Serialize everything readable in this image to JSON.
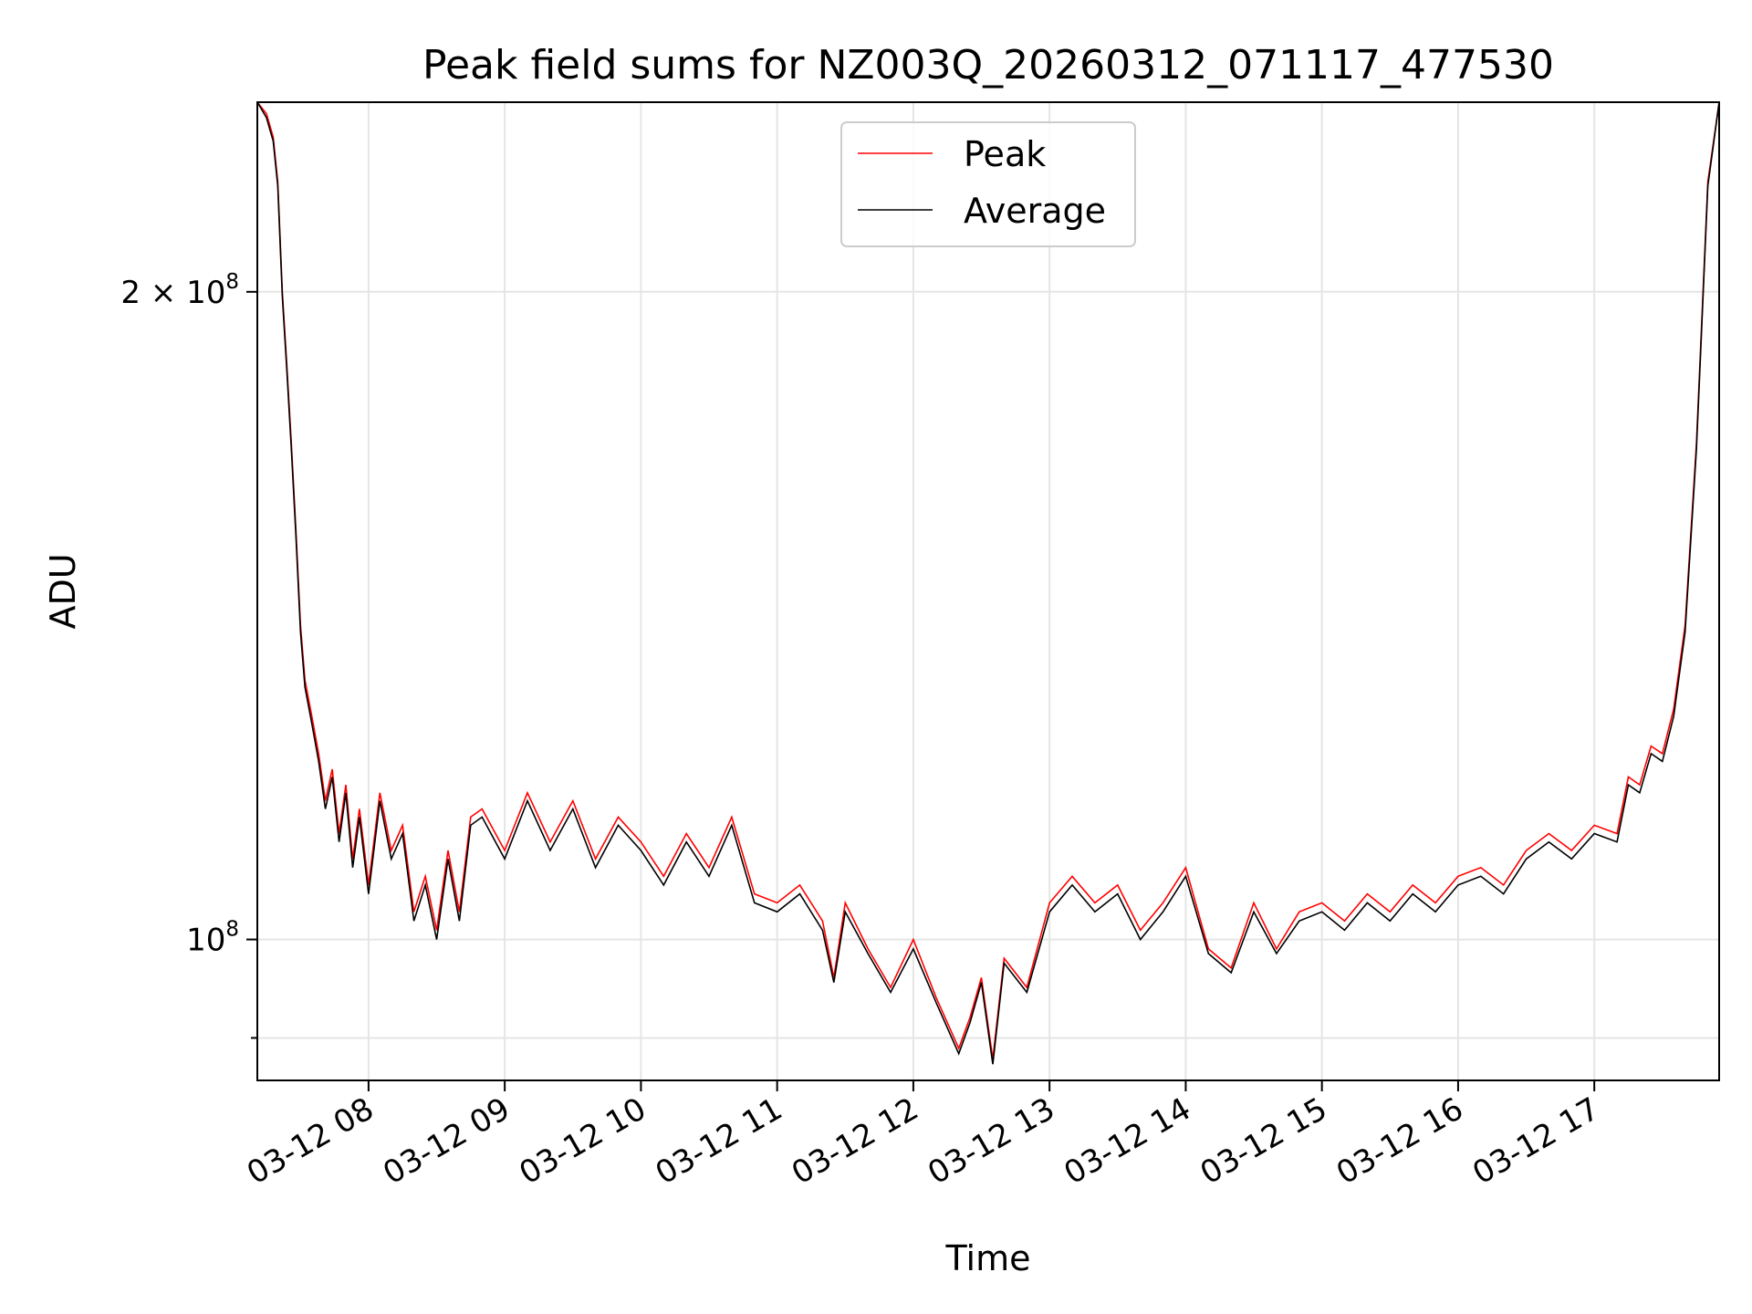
{
  "chart_data": {
    "type": "line",
    "title": "Peak field sums for NZ003Q_20260312_071117_477530",
    "xlabel": "Time",
    "ylabel": "ADU",
    "yscale": "log",
    "ylim": [
      86000000,
      245000000
    ],
    "xlim": [
      "03-12 07:11",
      "03-12 17:55"
    ],
    "grid": true,
    "legend_position": "top-center",
    "x_ticks": [
      "03-12 08",
      "03-12 09",
      "03-12 10",
      "03-12 11",
      "03-12 12",
      "03-12 13",
      "03-12 14",
      "03-12 15",
      "03-12 16",
      "03-12 17"
    ],
    "y_ticks": [
      {
        "value": 100000000,
        "base": "10",
        "exp": "8",
        "mult": ""
      },
      {
        "value": 200000000,
        "base": "10",
        "exp": "8",
        "mult": "2 × "
      }
    ],
    "y_minor_ticks": [
      90000000
    ],
    "series": [
      {
        "name": "Peak",
        "color": "#ff0000",
        "x": [
          "03-12 07:11",
          "03-12 07:15",
          "03-12 07:18",
          "03-12 07:20",
          "03-12 07:22",
          "03-12 07:24",
          "03-12 07:26",
          "03-12 07:28",
          "03-12 07:30",
          "03-12 07:32",
          "03-12 07:35",
          "03-12 07:38",
          "03-12 07:41",
          "03-12 07:44",
          "03-12 07:47",
          "03-12 07:50",
          "03-12 07:53",
          "03-12 07:56",
          "03-12 08:00",
          "03-12 08:05",
          "03-12 08:10",
          "03-12 08:15",
          "03-12 08:20",
          "03-12 08:25",
          "03-12 08:30",
          "03-12 08:35",
          "03-12 08:40",
          "03-12 08:45",
          "03-12 08:50",
          "03-12 09:00",
          "03-12 09:10",
          "03-12 09:20",
          "03-12 09:30",
          "03-12 09:40",
          "03-12 09:50",
          "03-12 10:00",
          "03-12 10:10",
          "03-12 10:20",
          "03-12 10:30",
          "03-12 10:40",
          "03-12 10:50",
          "03-12 11:00",
          "03-12 11:10",
          "03-12 11:20",
          "03-12 11:25",
          "03-12 11:30",
          "03-12 11:40",
          "03-12 11:50",
          "03-12 12:00",
          "03-12 12:10",
          "03-12 12:20",
          "03-12 12:25",
          "03-12 12:30",
          "03-12 12:35",
          "03-12 12:40",
          "03-12 12:50",
          "03-12 13:00",
          "03-12 13:10",
          "03-12 13:20",
          "03-12 13:30",
          "03-12 13:40",
          "03-12 13:50",
          "03-12 14:00",
          "03-12 14:10",
          "03-12 14:20",
          "03-12 14:30",
          "03-12 14:40",
          "03-12 14:50",
          "03-12 15:00",
          "03-12 15:10",
          "03-12 15:20",
          "03-12 15:30",
          "03-12 15:40",
          "03-12 15:50",
          "03-12 16:00",
          "03-12 16:10",
          "03-12 16:20",
          "03-12 16:30",
          "03-12 16:40",
          "03-12 16:50",
          "03-12 17:00",
          "03-12 17:10",
          "03-12 17:15",
          "03-12 17:20",
          "03-12 17:25",
          "03-12 17:30",
          "03-12 17:35",
          "03-12 17:40",
          "03-12 17:45",
          "03-12 17:50",
          "03-12 17:55"
        ],
        "y": [
          245000000,
          242000000,
          236000000,
          225000000,
          200000000,
          185000000,
          170000000,
          155000000,
          140000000,
          132000000,
          127000000,
          122000000,
          116000000,
          120000000,
          112000000,
          118000000,
          109000000,
          115000000,
          106000000,
          117000000,
          110000000,
          113000000,
          103000000,
          107000000,
          101000000,
          110000000,
          103000000,
          114000000,
          115000000,
          110000000,
          117000000,
          111000000,
          116000000,
          109000000,
          114000000,
          111000000,
          107000000,
          112000000,
          108000000,
          114000000,
          105000000,
          104000000,
          106000000,
          102000000,
          96000000,
          104000000,
          99000000,
          95000000,
          100000000,
          94000000,
          89000000,
          92000000,
          96000000,
          88000000,
          98000000,
          95000000,
          104000000,
          107000000,
          104000000,
          106000000,
          101000000,
          104000000,
          108000000,
          99000000,
          97000000,
          104000000,
          99000000,
          103000000,
          104000000,
          102000000,
          105000000,
          103000000,
          106000000,
          104000000,
          107000000,
          108000000,
          106000000,
          110000000,
          112000000,
          110000000,
          113000000,
          112000000,
          119000000,
          118000000,
          123000000,
          122000000,
          128000000,
          140000000,
          170000000,
          225000000,
          245000000
        ]
      },
      {
        "name": "Average",
        "color": "#000000",
        "x": [
          "03-12 07:11",
          "03-12 07:15",
          "03-12 07:18",
          "03-12 07:20",
          "03-12 07:22",
          "03-12 07:24",
          "03-12 07:26",
          "03-12 07:28",
          "03-12 07:30",
          "03-12 07:32",
          "03-12 07:35",
          "03-12 07:38",
          "03-12 07:41",
          "03-12 07:44",
          "03-12 07:47",
          "03-12 07:50",
          "03-12 07:53",
          "03-12 07:56",
          "03-12 08:00",
          "03-12 08:05",
          "03-12 08:10",
          "03-12 08:15",
          "03-12 08:20",
          "03-12 08:25",
          "03-12 08:30",
          "03-12 08:35",
          "03-12 08:40",
          "03-12 08:45",
          "03-12 08:50",
          "03-12 09:00",
          "03-12 09:10",
          "03-12 09:20",
          "03-12 09:30",
          "03-12 09:40",
          "03-12 09:50",
          "03-12 10:00",
          "03-12 10:10",
          "03-12 10:20",
          "03-12 10:30",
          "03-12 10:40",
          "03-12 10:50",
          "03-12 11:00",
          "03-12 11:10",
          "03-12 11:20",
          "03-12 11:25",
          "03-12 11:30",
          "03-12 11:40",
          "03-12 11:50",
          "03-12 12:00",
          "03-12 12:10",
          "03-12 12:20",
          "03-12 12:25",
          "03-12 12:30",
          "03-12 12:35",
          "03-12 12:40",
          "03-12 12:50",
          "03-12 13:00",
          "03-12 13:10",
          "03-12 13:20",
          "03-12 13:30",
          "03-12 13:40",
          "03-12 13:50",
          "03-12 14:00",
          "03-12 14:10",
          "03-12 14:20",
          "03-12 14:30",
          "03-12 14:40",
          "03-12 14:50",
          "03-12 15:00",
          "03-12 15:10",
          "03-12 15:20",
          "03-12 15:30",
          "03-12 15:40",
          "03-12 15:50",
          "03-12 16:00",
          "03-12 16:10",
          "03-12 16:20",
          "03-12 16:30",
          "03-12 16:40",
          "03-12 16:50",
          "03-12 17:00",
          "03-12 17:10",
          "03-12 17:15",
          "03-12 17:20",
          "03-12 17:25",
          "03-12 17:30",
          "03-12 17:35",
          "03-12 17:40",
          "03-12 17:45",
          "03-12 17:50",
          "03-12 17:55"
        ],
        "y": [
          245000000,
          241000000,
          235000000,
          224000000,
          199000000,
          184000000,
          169000000,
          154000000,
          139000000,
          131000000,
          126000000,
          121000000,
          115000000,
          119000000,
          111000000,
          117000000,
          108000000,
          114000000,
          105000000,
          116000000,
          109000000,
          112000000,
          102000000,
          106000000,
          100000000,
          109000000,
          102000000,
          113000000,
          114000000,
          109000000,
          116000000,
          110000000,
          115000000,
          108000000,
          113000000,
          110000000,
          106000000,
          111000000,
          107000000,
          113000000,
          104000000,
          103000000,
          105000000,
          101000000,
          95500000,
          103000000,
          98500000,
          94500000,
          99000000,
          93500000,
          88500000,
          91500000,
          95500000,
          87500000,
          97500000,
          94500000,
          103000000,
          106000000,
          103000000,
          105000000,
          100000000,
          103000000,
          107000000,
          98500000,
          96500000,
          103000000,
          98500000,
          102000000,
          103000000,
          101000000,
          104000000,
          102000000,
          105000000,
          103000000,
          106000000,
          107000000,
          105000000,
          109000000,
          111000000,
          109000000,
          112000000,
          111000000,
          118000000,
          117000000,
          122000000,
          121000000,
          127000000,
          139000000,
          169000000,
          224000000,
          245000000
        ]
      }
    ]
  }
}
